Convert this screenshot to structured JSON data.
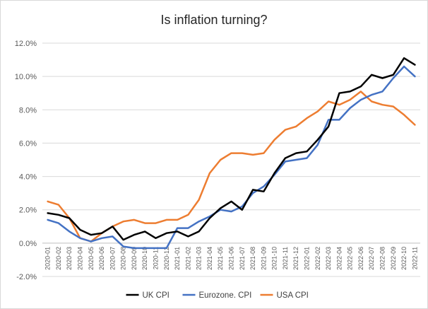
{
  "chart_data": {
    "type": "line",
    "title": "Is inflation turning?",
    "xlabel": "",
    "ylabel": "",
    "ylim": [
      -2.0,
      12.0
    ],
    "yticks": [
      "-2.0%",
      "0.0%",
      "2.0%",
      "4.0%",
      "6.0%",
      "8.0%",
      "10.0%",
      "12.0%"
    ],
    "ytick_values": [
      -2,
      0,
      2,
      4,
      6,
      8,
      10,
      12
    ],
    "grid": true,
    "legend_position": "bottom",
    "x": [
      "2020-01",
      "2020-02",
      "2020-03",
      "2020-04",
      "2020-05",
      "2020-06",
      "2020-07",
      "2020-08",
      "2020-09",
      "2020-10",
      "2020-11",
      "2020-12",
      "2021-01",
      "2021-02",
      "2021-03",
      "2021-04",
      "2021-05",
      "2021-06",
      "2021-07",
      "2021-08",
      "2021-09",
      "2021-10",
      "2021-11",
      "2021-12",
      "2022-01",
      "2022-02",
      "2022-03",
      "2022-04",
      "2022-05",
      "2022-06",
      "2022-07",
      "2022-08",
      "2022-09",
      "2022-10",
      "2022-11"
    ],
    "series": [
      {
        "name": "UK CPI",
        "color": "#000000",
        "values": [
          1.8,
          1.7,
          1.5,
          0.8,
          0.5,
          0.6,
          1.0,
          0.2,
          0.5,
          0.7,
          0.3,
          0.6,
          0.7,
          0.4,
          0.7,
          1.5,
          2.1,
          2.5,
          2.0,
          3.2,
          3.1,
          4.2,
          5.1,
          5.4,
          5.5,
          6.2,
          7.0,
          9.0,
          9.1,
          9.4,
          10.1,
          9.9,
          10.1,
          11.1,
          10.7
        ]
      },
      {
        "name": "Eurozone. CPI",
        "color": "#4472c4",
        "values": [
          1.4,
          1.2,
          0.7,
          0.3,
          0.1,
          0.3,
          0.4,
          -0.2,
          -0.3,
          -0.3,
          -0.3,
          -0.3,
          0.9,
          0.9,
          1.3,
          1.6,
          2.0,
          1.9,
          2.2,
          3.0,
          3.4,
          4.1,
          4.9,
          5.0,
          5.1,
          5.9,
          7.4,
          7.4,
          8.1,
          8.6,
          8.9,
          9.1,
          9.9,
          10.6,
          10.0
        ]
      },
      {
        "name": "USA CPI",
        "color": "#ed7d31",
        "values": [
          2.5,
          2.3,
          1.5,
          0.3,
          0.1,
          0.6,
          1.0,
          1.3,
          1.4,
          1.2,
          1.2,
          1.4,
          1.4,
          1.7,
          2.6,
          4.2,
          5.0,
          5.4,
          5.4,
          5.3,
          5.4,
          6.2,
          6.8,
          7.0,
          7.5,
          7.9,
          8.5,
          8.3,
          8.6,
          9.1,
          8.5,
          8.3,
          8.2,
          7.7,
          7.1
        ]
      }
    ]
  }
}
